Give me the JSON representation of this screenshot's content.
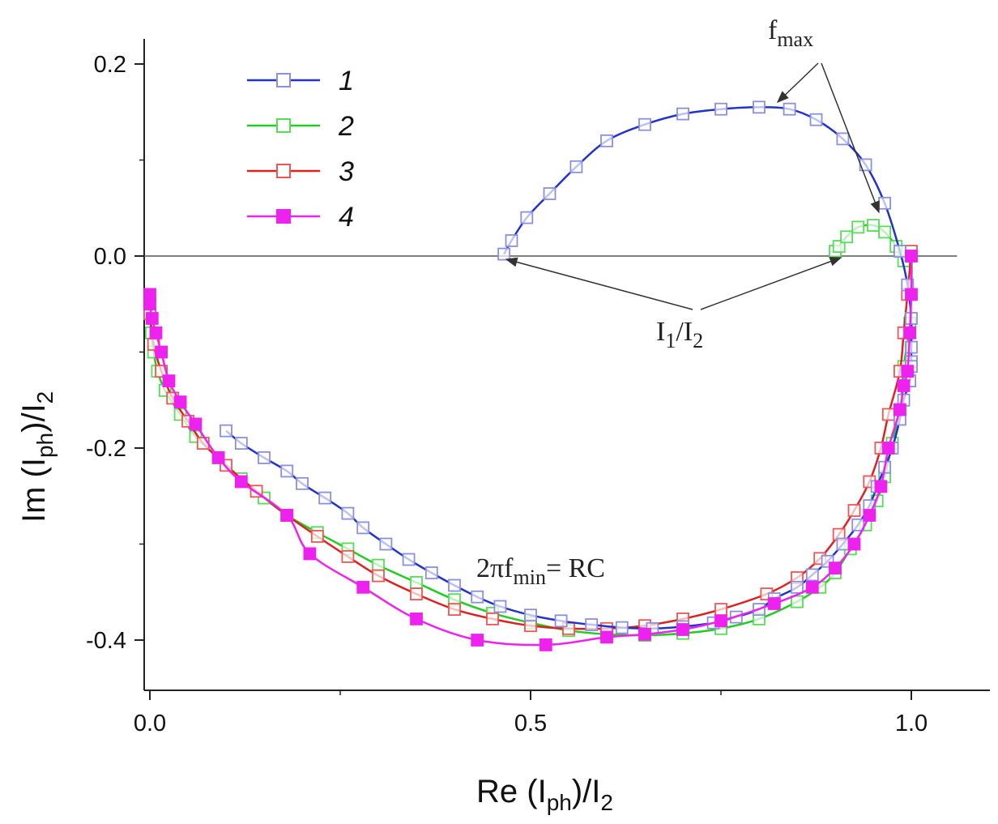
{
  "chart_data": {
    "type": "scatter",
    "title": "",
    "xlabel": "Re (I",
    "xlabel_sub": "ph",
    "xlabel_tail": ")/I",
    "xlabel_sub2": "2",
    "ylabel": "Im (I",
    "ylabel_sub": "ph",
    "ylabel_tail": ")/I",
    "ylabel_sub2": "2",
    "xlim": [
      -0.01,
      1.1
    ],
    "ylim": [
      -0.45,
      0.2
    ],
    "x_ticks": [
      0.0,
      0.5,
      1.0
    ],
    "x_tick_labels": [
      "0.0",
      "0.5",
      "1.0"
    ],
    "y_ticks": [
      0.2,
      0.0,
      -0.2,
      -0.4
    ],
    "y_tick_labels": [
      "0.2",
      "0.0",
      "-0.2",
      "-0.4"
    ],
    "reference_line_y": 0.0,
    "legend_position": "top-left",
    "series": [
      {
        "name": "1",
        "color": "#2233cc",
        "marker": "open-square",
        "marker_color": "#8a8fe0",
        "x": [
          0.465,
          0.475,
          0.495,
          0.525,
          0.56,
          0.6,
          0.65,
          0.7,
          0.75,
          0.8,
          0.84,
          0.875,
          0.91,
          0.94,
          0.965,
          0.985,
          0.995,
          1.0,
          1.0,
          1.0,
          1.0,
          0.998,
          0.99,
          0.985,
          0.975,
          0.965,
          0.955,
          0.945,
          0.93,
          0.91,
          0.89,
          0.87,
          0.85,
          0.82,
          0.8,
          0.77,
          0.74,
          0.7,
          0.66,
          0.62,
          0.58,
          0.54,
          0.5,
          0.46,
          0.43,
          0.4,
          0.37,
          0.34,
          0.31,
          0.28,
          0.26,
          0.23,
          0.2,
          0.18,
          0.15,
          0.12,
          0.1
        ],
        "y": [
          0.002,
          0.016,
          0.04,
          0.065,
          0.093,
          0.12,
          0.137,
          0.148,
          0.153,
          0.155,
          0.153,
          0.142,
          0.122,
          0.095,
          0.055,
          0.005,
          -0.03,
          -0.065,
          -0.095,
          -0.11,
          -0.115,
          -0.13,
          -0.15,
          -0.17,
          -0.2,
          -0.22,
          -0.24,
          -0.26,
          -0.28,
          -0.3,
          -0.318,
          -0.332,
          -0.345,
          -0.357,
          -0.368,
          -0.376,
          -0.382,
          -0.386,
          -0.388,
          -0.387,
          -0.384,
          -0.38,
          -0.374,
          -0.365,
          -0.355,
          -0.343,
          -0.33,
          -0.316,
          -0.3,
          -0.283,
          -0.268,
          -0.252,
          -0.237,
          -0.224,
          -0.21,
          -0.195,
          -0.182
        ]
      },
      {
        "name": "2",
        "color": "#22cc22",
        "marker": "open-square",
        "marker_color": "#55dd55",
        "x": [
          0.9,
          0.905,
          0.915,
          0.93,
          0.95,
          0.965,
          0.98,
          0.99,
          1.0,
          0.998,
          0.99,
          0.985,
          0.975,
          0.965,
          0.955,
          0.94,
          0.92,
          0.9,
          0.88,
          0.85,
          0.8,
          0.75,
          0.7,
          0.65,
          0.6,
          0.55,
          0.5,
          0.45,
          0.4,
          0.35,
          0.3,
          0.26,
          0.22,
          0.18,
          0.15,
          0.12,
          0.09,
          0.06,
          0.04,
          0.02,
          0.01,
          0.005,
          0.002,
          0.0
        ],
        "y": [
          0.005,
          0.01,
          0.02,
          0.03,
          0.032,
          0.025,
          0.01,
          -0.005,
          0.0,
          -0.07,
          -0.115,
          -0.16,
          -0.195,
          -0.23,
          -0.255,
          -0.28,
          -0.305,
          -0.33,
          -0.345,
          -0.36,
          -0.378,
          -0.388,
          -0.393,
          -0.395,
          -0.394,
          -0.39,
          -0.382,
          -0.372,
          -0.358,
          -0.34,
          -0.322,
          -0.305,
          -0.288,
          -0.27,
          -0.252,
          -0.232,
          -0.21,
          -0.188,
          -0.165,
          -0.14,
          -0.12,
          -0.1,
          -0.08,
          -0.06
        ]
      },
      {
        "name": "3",
        "color": "#dd2222",
        "marker": "open-square",
        "marker_color": "#ee5555",
        "x": [
          1.0,
          0.995,
          0.99,
          0.985,
          0.97,
          0.96,
          0.945,
          0.925,
          0.905,
          0.88,
          0.85,
          0.81,
          0.75,
          0.7,
          0.65,
          0.6,
          0.55,
          0.5,
          0.45,
          0.4,
          0.35,
          0.3,
          0.26,
          0.22,
          0.18,
          0.14,
          0.1,
          0.07,
          0.05,
          0.03,
          0.015,
          0.005,
          0.0
        ],
        "y": [
          0.005,
          -0.04,
          -0.08,
          -0.12,
          -0.165,
          -0.2,
          -0.235,
          -0.265,
          -0.29,
          -0.315,
          -0.335,
          -0.352,
          -0.368,
          -0.378,
          -0.385,
          -0.388,
          -0.388,
          -0.385,
          -0.378,
          -0.368,
          -0.352,
          -0.333,
          -0.313,
          -0.292,
          -0.27,
          -0.245,
          -0.218,
          -0.195,
          -0.172,
          -0.148,
          -0.12,
          -0.092,
          -0.06
        ]
      },
      {
        "name": "4",
        "color": "#ee22ee",
        "marker": "filled-square",
        "marker_color": "#ee22ee",
        "x": [
          1.0,
          1.0,
          0.998,
          0.995,
          0.99,
          0.985,
          0.97,
          0.96,
          0.945,
          0.925,
          0.9,
          0.87,
          0.82,
          0.75,
          0.7,
          0.65,
          0.6,
          0.52,
          0.43,
          0.35,
          0.28,
          0.21,
          0.18,
          0.12,
          0.09,
          0.06,
          0.04,
          0.025,
          0.015,
          0.008,
          0.003,
          0.0,
          0.0
        ],
        "y": [
          0.0,
          -0.04,
          -0.08,
          -0.12,
          -0.135,
          -0.16,
          -0.2,
          -0.24,
          -0.27,
          -0.3,
          -0.325,
          -0.345,
          -0.362,
          -0.38,
          -0.389,
          -0.394,
          -0.397,
          -0.405,
          -0.4,
          -0.378,
          -0.345,
          -0.31,
          -0.27,
          -0.235,
          -0.21,
          -0.175,
          -0.152,
          -0.13,
          -0.1,
          -0.08,
          -0.065,
          -0.05,
          -0.04
        ]
      }
    ],
    "legend": [
      "1",
      "2",
      "3",
      "4"
    ],
    "annotations": {
      "fmax": {
        "text": "f",
        "sub": "max"
      },
      "i1i2": {
        "text": "I",
        "sub1": "1",
        "mid": "/I",
        "sub2": "2"
      },
      "fmin": {
        "text": "2πf",
        "sub": "min",
        "tail": "= RC"
      }
    }
  }
}
